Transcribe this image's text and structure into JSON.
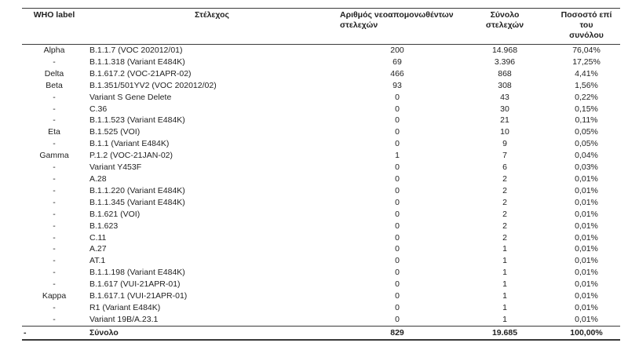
{
  "table": {
    "headers": [
      {
        "text": "WHO label"
      },
      {
        "text": "Στέλεχος"
      },
      {
        "line1": "Αριθμός νεοαπομονωθέντων",
        "line2": "στελεχών"
      },
      {
        "line1": "Σύνολο",
        "line2": "στελεχών"
      },
      {
        "line1": "Ποσοστό επί του",
        "line2": "συνόλου"
      }
    ],
    "rows": [
      [
        "Alpha",
        "B.1.1.7 (VOC 202012/01)",
        "200",
        "14.968",
        "76,04%"
      ],
      [
        "-",
        "B.1.1.318 (Variant E484K)",
        "69",
        "3.396",
        "17,25%"
      ],
      [
        "Delta",
        "B.1.617.2 (VOC-21APR-02)",
        "466",
        "868",
        "4,41%"
      ],
      [
        "Beta",
        "B.1.351/501YV2 (VOC 202012/02)",
        "93",
        "308",
        "1,56%"
      ],
      [
        "-",
        "Variant S Gene Delete",
        "0",
        "43",
        "0,22%"
      ],
      [
        "-",
        "C.36",
        "0",
        "30",
        "0,15%"
      ],
      [
        "-",
        "B.1.1.523 (Variant E484K)",
        "0",
        "21",
        "0,11%"
      ],
      [
        "Eta",
        "B.1.525 (VOI)",
        "0",
        "10",
        "0,05%"
      ],
      [
        "-",
        "B.1.1 (Variant E484K)",
        "0",
        "9",
        "0,05%"
      ],
      [
        "Gamma",
        "P.1.2 (VOC-21JAN-02)",
        "1",
        "7",
        "0,04%"
      ],
      [
        "-",
        "Variant Y453F",
        "0",
        "6",
        "0,03%"
      ],
      [
        "-",
        "A.28",
        "0",
        "2",
        "0,01%"
      ],
      [
        "-",
        "B.1.1.220 (Variant E484K)",
        "0",
        "2",
        "0,01%"
      ],
      [
        "-",
        "B.1.1.345 (Variant E484K)",
        "0",
        "2",
        "0,01%"
      ],
      [
        "-",
        "B.1.621 (VOI)",
        "0",
        "2",
        "0,01%"
      ],
      [
        "-",
        "B.1.623",
        "0",
        "2",
        "0,01%"
      ],
      [
        "-",
        "C.11",
        "0",
        "2",
        "0,01%"
      ],
      [
        "-",
        "A.27",
        "0",
        "1",
        "0,01%"
      ],
      [
        "-",
        "AT.1",
        "0",
        "1",
        "0,01%"
      ],
      [
        "-",
        "B.1.1.198 (Variant E484K)",
        "0",
        "1",
        "0,01%"
      ],
      [
        "-",
        "B.1.617 (VUI-21APR-01)",
        "0",
        "1",
        "0,01%"
      ],
      [
        "Kappa",
        "B.1.617.1 (VUI-21APR-01)",
        "0",
        "1",
        "0,01%"
      ],
      [
        "-",
        "R1 (Variant E484K)",
        "0",
        "1",
        "0,01%"
      ],
      [
        "-",
        "Variant 19B/A.23.1",
        "0",
        "1",
        "0,01%"
      ]
    ],
    "total_row": [
      "-",
      "Σύνολο",
      "829",
      "19.685",
      "100,00%"
    ]
  }
}
